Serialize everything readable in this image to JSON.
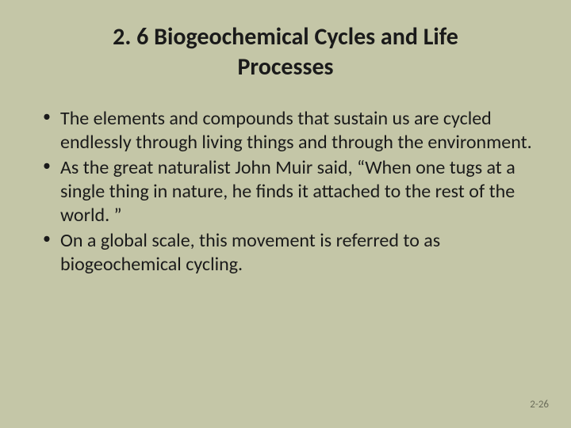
{
  "slide": {
    "title": "2. 6 Biogeochemical Cycles and Life Processes",
    "bullets": [
      "The elements and compounds that sustain us are cycled endlessly through living things and through the environment.",
      "As the great naturalist John Muir said, “When one tugs at a single thing in nature, he finds it attached to the rest of the world. ”",
      "On a global scale, this movement is referred to as biogeochemical cycling."
    ],
    "page_number": "2-26",
    "colors": {
      "background": "#c4c6a7",
      "text": "#1a1a1a",
      "page_number": "#6b6d5a"
    },
    "typography": {
      "title_fontsize": 30,
      "title_weight": "bold",
      "body_fontsize": 24,
      "page_number_fontsize": 13,
      "font_family": "Calibri"
    }
  }
}
